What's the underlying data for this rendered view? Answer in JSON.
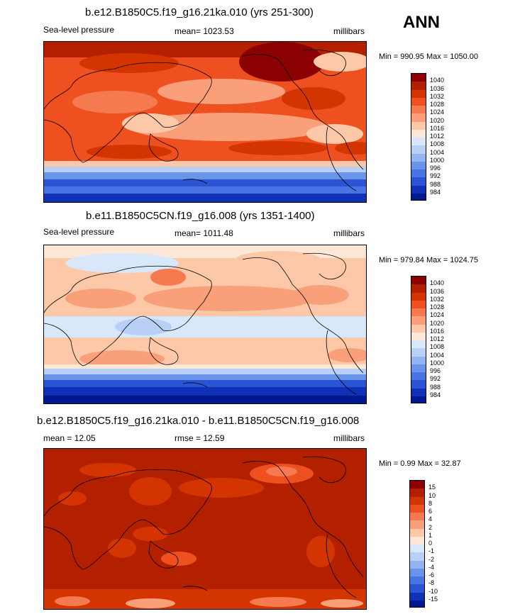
{
  "season": "ANN",
  "panels": [
    {
      "title": "b.e12.B1850C5.f19_g16.21ka.010 (yrs 251-300)",
      "left_label": "Sea-level pressure",
      "center_label": "mean= 1023.53",
      "right_label": "millibars",
      "minmax": "Min = 990.95 Max = 1050.00"
    },
    {
      "title": "b.e11.B1850C5CN.f19_g16.008 (yrs 1351-1400)",
      "left_label": "Sea-level pressure",
      "center_label": "mean= 1011.48",
      "right_label": "millibars",
      "minmax": "Min = 979.84 Max = 1024.75"
    },
    {
      "title": "b.e12.B1850C5.f19_g16.21ka.010 - b.e11.B1850C5CN.f19_g16.008",
      "left_label": "mean =  12.05",
      "center_label": "rmse =  12.59",
      "right_label": "millibars",
      "minmax": "Min =   0.99 Max =  32.87"
    }
  ],
  "colorbars": {
    "slp": {
      "colors": [
        "#8b0000",
        "#b22000",
        "#d43400",
        "#ee5020",
        "#f57a50",
        "#f9a07a",
        "#fcc8a8",
        "#fde8d8",
        "#d8e8fa",
        "#b8d0f6",
        "#92b4f0",
        "#6a94ea",
        "#4a74e4",
        "#2a54d4",
        "#1030b8",
        "#001890"
      ],
      "ticks": [
        "1040",
        "1036",
        "1032",
        "1028",
        "1024",
        "1020",
        "1016",
        "1012",
        "1008",
        "1004",
        "1000",
        "996",
        "992",
        "988",
        "984"
      ]
    },
    "diff": {
      "colors": [
        "#8b0000",
        "#b22000",
        "#d43400",
        "#ee5020",
        "#f57a50",
        "#f9a07a",
        "#fcc8a8",
        "#fde8d8",
        "#d8e8fa",
        "#b8d0f6",
        "#92b4f0",
        "#6a94ea",
        "#4a74e4",
        "#2a54d4",
        "#1030b8",
        "#001890"
      ],
      "ticks": [
        "15",
        "10",
        "8",
        "6",
        "4",
        "2",
        "1",
        "0",
        "-1",
        "-2",
        "-4",
        "-6",
        "-8",
        "-10",
        "-15"
      ]
    }
  }
}
